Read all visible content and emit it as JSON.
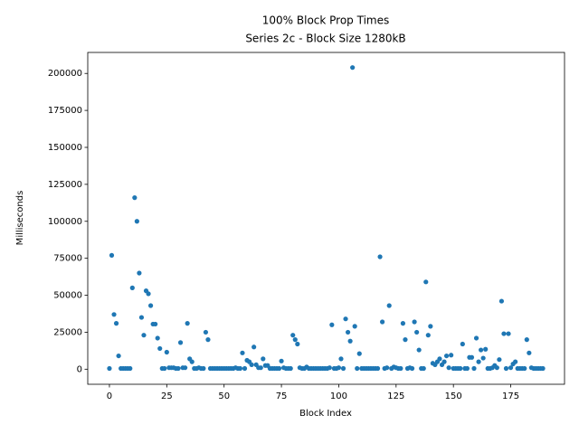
{
  "chart_data": {
    "type": "scatter",
    "title": "100% Block Prop Times",
    "subtitle": "Series 2c - Block Size 1280kB",
    "x_label": "Block Index",
    "y_label": "Milliseconds",
    "color": "#1f77b4",
    "x": [
      0,
      1,
      2,
      3,
      4,
      5,
      6,
      7,
      8,
      9,
      10,
      11,
      12,
      13,
      14,
      15,
      16,
      17,
      18,
      19,
      20,
      21,
      22,
      23,
      24,
      25,
      26,
      27,
      28,
      29,
      30,
      31,
      32,
      33,
      34,
      35,
      36,
      37,
      38,
      39,
      40,
      41,
      42,
      43,
      44,
      45,
      46,
      47,
      48,
      49,
      50,
      51,
      52,
      53,
      54,
      55,
      56,
      57,
      58,
      59,
      60,
      61,
      62,
      63,
      64,
      65,
      66,
      67,
      68,
      69,
      70,
      71,
      72,
      73,
      74,
      75,
      76,
      77,
      78,
      79,
      80,
      81,
      82,
      83,
      84,
      85,
      86,
      87,
      88,
      89,
      90,
      91,
      92,
      93,
      94,
      95,
      96,
      97,
      98,
      99,
      100,
      101,
      102,
      103,
      104,
      105,
      106,
      107,
      108,
      109,
      110,
      111,
      112,
      113,
      114,
      115,
      116,
      117,
      118,
      119,
      120,
      121,
      122,
      123,
      124,
      125,
      126,
      127,
      128,
      129,
      130,
      131,
      132,
      133,
      134,
      135,
      136,
      137,
      138,
      139,
      140,
      141,
      142,
      143,
      144,
      145,
      146,
      147,
      148,
      149,
      150,
      151,
      152,
      153,
      154,
      155,
      156,
      157,
      158,
      159,
      160,
      161,
      162,
      163,
      164,
      165,
      166,
      167,
      168,
      169,
      170,
      171,
      172,
      173,
      174,
      175,
      176,
      177,
      178,
      179,
      180,
      181,
      182,
      183,
      184,
      185,
      186,
      187,
      188,
      189
    ],
    "values": [
      500,
      77000,
      37000,
      31000,
      9000,
      500,
      500,
      500,
      500,
      500,
      55000,
      116000,
      100000,
      65000,
      35000,
      23000,
      53000,
      51000,
      43000,
      30500,
      30500,
      21000,
      14000,
      500,
      500,
      11500,
      1000,
      1000,
      1000,
      500,
      500,
      18000,
      1000,
      1000,
      31000,
      7000,
      5000,
      500,
      500,
      1000,
      500,
      500,
      25000,
      20000,
      500,
      500,
      500,
      500,
      500,
      500,
      500,
      500,
      500,
      500,
      500,
      1000,
      500,
      500,
      11000,
      500,
      6000,
      5000,
      3000,
      15000,
      3000,
      1000,
      1000,
      7000,
      2500,
      2500,
      500,
      500,
      500,
      500,
      500,
      5500,
      1000,
      500,
      500,
      500,
      23000,
      20000,
      17000,
      1000,
      500,
      500,
      1500,
      500,
      500,
      500,
      500,
      500,
      500,
      500,
      500,
      500,
      1000,
      30000,
      500,
      500,
      1000,
      7000,
      500,
      34000,
      25000,
      19000,
      204000,
      29000,
      500,
      10500,
      500,
      500,
      500,
      500,
      500,
      500,
      500,
      500,
      76000,
      32000,
      500,
      1000,
      43000,
      500,
      1500,
      1000,
      500,
      500,
      31000,
      20000,
      500,
      1000,
      500,
      32000,
      25000,
      13000,
      500,
      500,
      59000,
      23000,
      29000,
      4000,
      3000,
      5000,
      7000,
      3000,
      5000,
      9000,
      1000,
      9500,
      500,
      500,
      500,
      500,
      17000,
      500,
      500,
      8000,
      8000,
      500,
      21000,
      5000,
      13000,
      7500,
      13500,
      500,
      500,
      1000,
      2500,
      1000,
      6500,
      46000,
      24000,
      500,
      24000,
      1000,
      3500,
      5000,
      500,
      500,
      500,
      500,
      20000,
      11000,
      1000,
      500,
      500,
      500,
      500,
      500
    ],
    "xlim": [
      -9.45,
      198.45
    ],
    "xticks": [
      0,
      25,
      50,
      75,
      100,
      125,
      150,
      175
    ],
    "ylim": [
      -10200,
      214200
    ],
    "yticks": [
      0,
      25000,
      50000,
      75000,
      100000,
      125000,
      150000,
      175000,
      200000
    ]
  }
}
